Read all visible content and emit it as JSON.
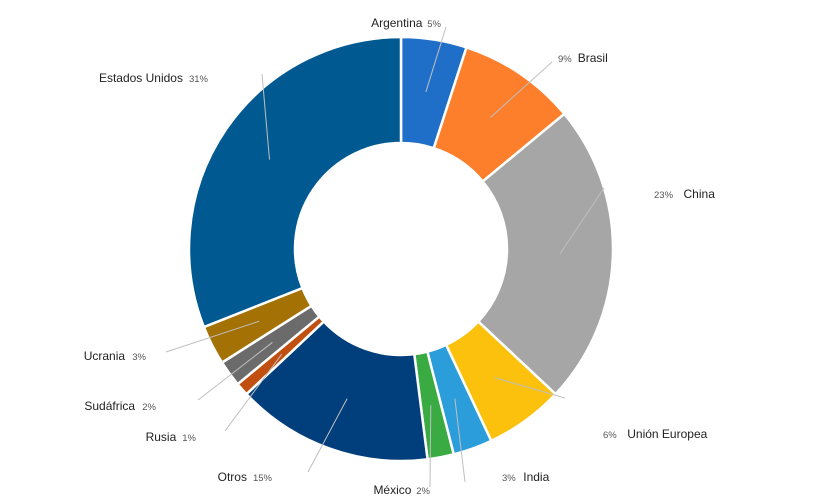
{
  "chart_data": {
    "type": "pie",
    "variant": "donut",
    "title": "",
    "slices": [
      {
        "label": "Argentina",
        "value": 5,
        "pct_text": "5%",
        "color": "#1f6fc9"
      },
      {
        "label": "Brasil",
        "value": 9,
        "pct_text": "9%",
        "color": "#fd7f2b"
      },
      {
        "label": "China",
        "value": 23,
        "pct_text": "23%",
        "color": "#a6a6a6"
      },
      {
        "label": "Unión Europea",
        "value": 6,
        "pct_text": "6%",
        "color": "#fcc10d"
      },
      {
        "label": "India",
        "value": 3,
        "pct_text": "3%",
        "color": "#2b9ddb"
      },
      {
        "label": "México",
        "value": 2,
        "pct_text": "2%",
        "color": "#3aab42"
      },
      {
        "label": "Otros",
        "value": 15,
        "pct_text": "15%",
        "color": "#003e7c"
      },
      {
        "label": "Rusia",
        "value": 1,
        "pct_text": "1%",
        "color": "#c14f0f"
      },
      {
        "label": "Sudáfrica",
        "value": 2,
        "pct_text": "2%",
        "color": "#6b6b6b"
      },
      {
        "label": "Ucrania",
        "value": 3,
        "pct_text": "3%",
        "color": "#a37104"
      },
      {
        "label": "Estados Unidos",
        "value": 31,
        "pct_text": "31%",
        "color": "#005a91"
      }
    ]
  }
}
